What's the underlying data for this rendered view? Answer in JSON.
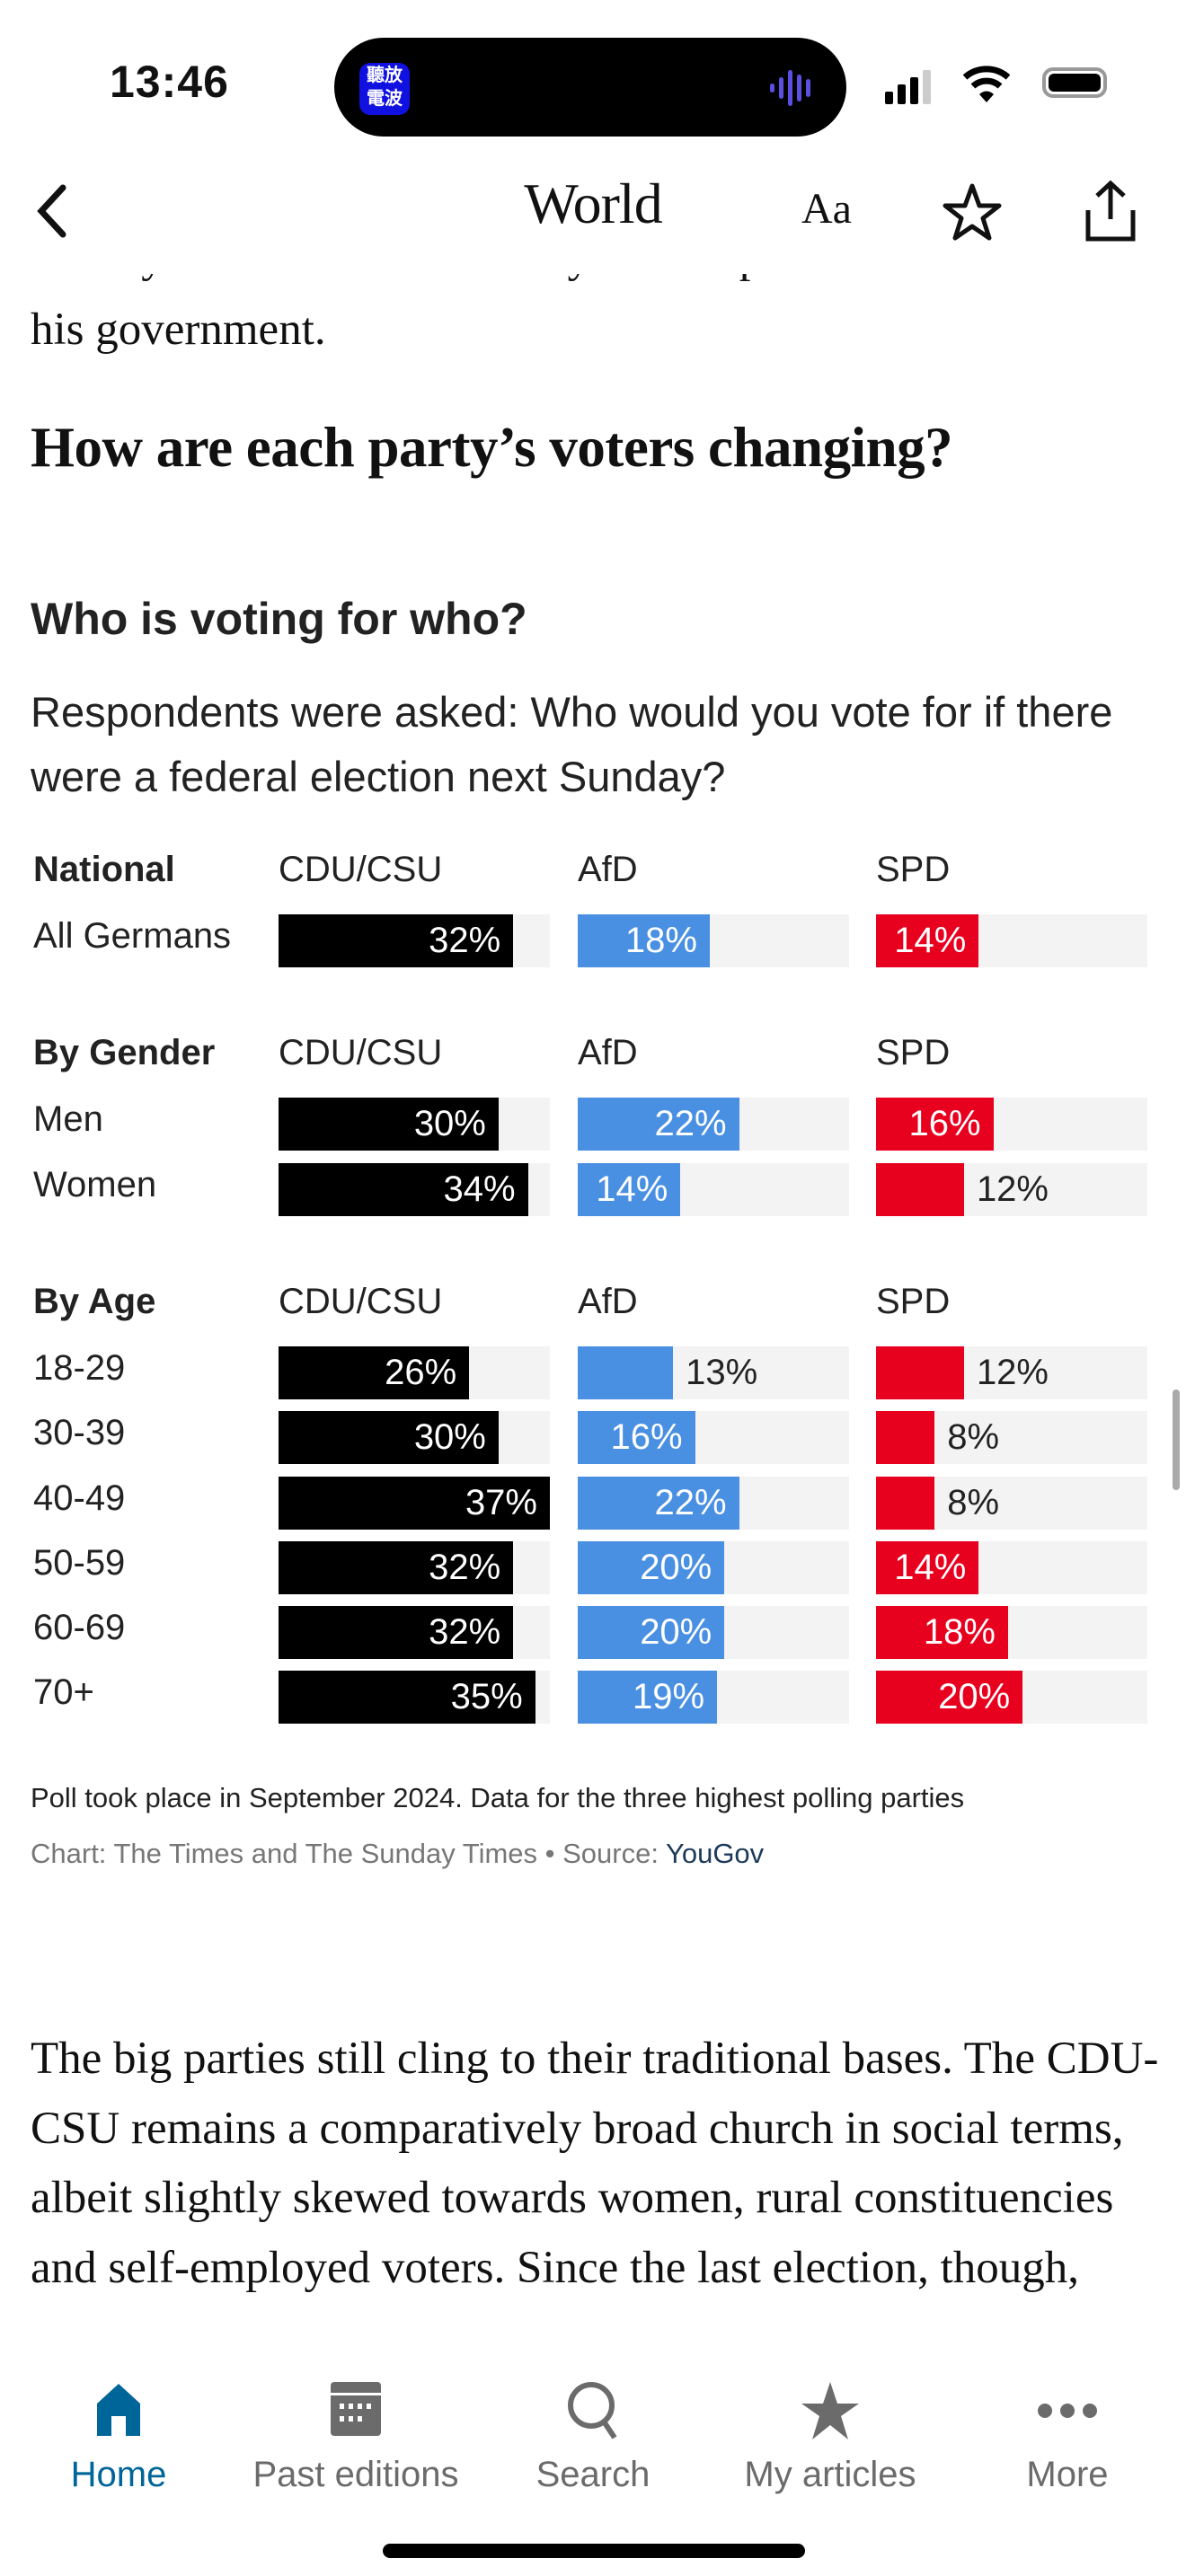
{
  "status_bar": {
    "time": "13:46",
    "island_app_text": "聽放電波"
  },
  "nav": {
    "title": "World",
    "text_size_label": "Aa",
    "back_icon": "chevron-left-icon",
    "bookmark_icon": "star-outline-icon",
    "share_icon": "share-icon"
  },
  "article": {
    "clipped_line": "he may have to corral as many as four parties into",
    "prev_line": "his government.",
    "heading": "How are each party’s voters changing?",
    "paragraph": "The big parties still cling to their traditional bases. The CDU-CSU remains a comparatively broad church in social terms, albeit slightly skewed towards women, rural constituencies and self-employed voters. Since the last election, though,"
  },
  "chart_data": {
    "type": "bar",
    "title": "Who is voting for who?",
    "subtitle": "Respondents were asked: Who would you vote for if there were a federal election next Sunday?",
    "parties": [
      "CDU/CSU",
      "AfD",
      "SPD"
    ],
    "colors": [
      "#000000",
      "#4a90e2",
      "#e8001f"
    ],
    "track_color": "#f3f3f3",
    "groups": [
      {
        "heading": "National",
        "rows": [
          {
            "label": "All Germans",
            "values": [
              32,
              18,
              14
            ]
          }
        ]
      },
      {
        "heading": "By Gender",
        "rows": [
          {
            "label": "Men",
            "values": [
              30,
              22,
              16
            ]
          },
          {
            "label": "Women",
            "values": [
              34,
              14,
              12
            ]
          }
        ]
      },
      {
        "heading": "By Age",
        "rows": [
          {
            "label": "18-29",
            "values": [
              26,
              13,
              12
            ]
          },
          {
            "label": "30-39",
            "values": [
              30,
              16,
              8
            ]
          },
          {
            "label": "40-49",
            "values": [
              37,
              22,
              8
            ]
          },
          {
            "label": "50-59",
            "values": [
              32,
              20,
              14
            ]
          },
          {
            "label": "60-69",
            "values": [
              32,
              20,
              18
            ]
          },
          {
            "label": "70+",
            "values": [
              35,
              19,
              20
            ]
          }
        ]
      }
    ],
    "footnote": "Poll took place in September 2024. Data for the three highest polling parties",
    "source_prefix": "Chart: The Times and The Sunday Times • Source: ",
    "source_name": "YouGov"
  },
  "tabbar": {
    "active_color": "#006599",
    "inactive_color": "#6b6b6b",
    "items": [
      {
        "label": "Home",
        "icon": "home-icon",
        "active": true
      },
      {
        "label": "Past editions",
        "icon": "calendar-icon",
        "active": false
      },
      {
        "label": "Search",
        "icon": "search-icon",
        "active": false
      },
      {
        "label": "My articles",
        "icon": "star-icon",
        "active": false
      },
      {
        "label": "More",
        "icon": "more-icon",
        "active": false
      }
    ]
  }
}
